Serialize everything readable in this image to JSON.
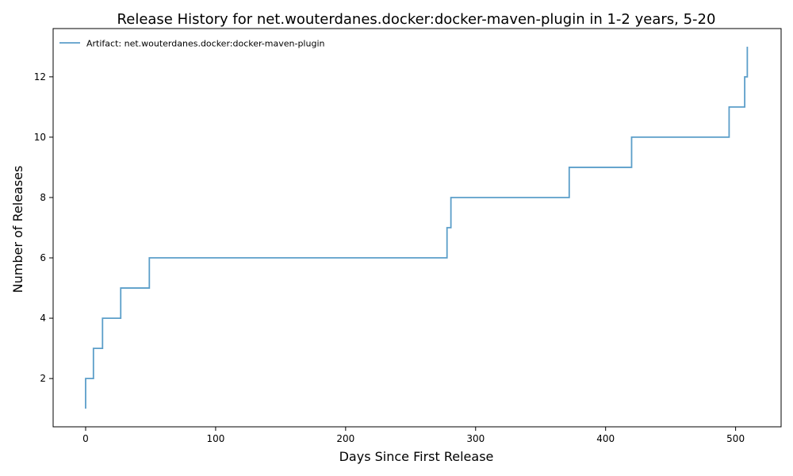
{
  "chart_data": {
    "type": "line",
    "title": "Release History for net.wouterdanes.docker:docker-maven-plugin in 1-2 years, 5-20",
    "xlabel": "Days Since First Release",
    "ylabel": "Number of Releases",
    "xlim": [
      -25,
      535
    ],
    "ylim": [
      0.4,
      13.6
    ],
    "xticks": [
      0,
      100,
      200,
      300,
      400,
      500
    ],
    "yticks": [
      2,
      4,
      6,
      8,
      10,
      12
    ],
    "grid": false,
    "legend_position": "top-left",
    "step": "post",
    "series": [
      {
        "name": "Artifact: net.wouterdanes.docker:docker-maven-plugin",
        "color": "#5b9ec9",
        "x": [
          0,
          0,
          6,
          13,
          27,
          49,
          278,
          281,
          372,
          420,
          495,
          507,
          508,
          509
        ],
        "y": [
          1,
          2,
          3,
          4,
          5,
          6,
          7,
          8,
          9,
          10,
          11,
          12,
          12,
          13
        ]
      }
    ]
  }
}
